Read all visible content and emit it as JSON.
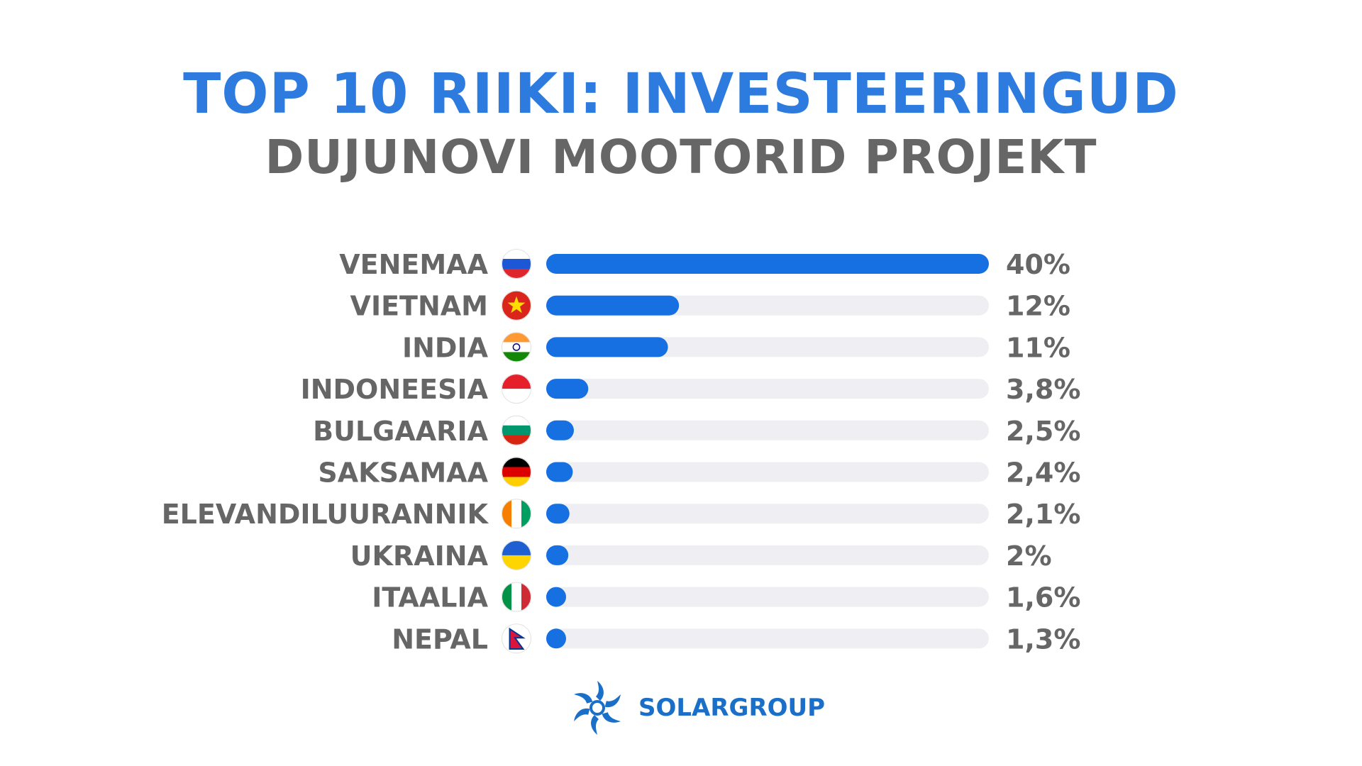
{
  "header": {
    "title": "TOP 10 RIIKI: INVESTEERINGUD",
    "subtitle": "DUJUNOVI MOOTORID PROJEKT"
  },
  "colors": {
    "title": "#2e7be0",
    "subtitle": "#666666",
    "label": "#666666",
    "bar": "#1670e1",
    "track": "#efeff3",
    "logo": "#1a6fc8"
  },
  "logo": {
    "text": "SOLARGROUP",
    "icon": "sun-swirl-icon"
  },
  "chart_data": {
    "type": "bar",
    "orientation": "horizontal",
    "categories": [
      "VENEMAA",
      "VIETNAM",
      "INDIA",
      "INDONEESIA",
      "BULGAARIA",
      "SAKSAMAA",
      "ELEVANDILUURANNIK",
      "UKRAINA",
      "ITAALIA",
      "NEPAL"
    ],
    "values": [
      40,
      12,
      11,
      3.8,
      2.5,
      2.4,
      2.1,
      2,
      1.6,
      1.3
    ],
    "value_labels": [
      "40%",
      "12%",
      "11%",
      "3,8%",
      "2,5%",
      "2,4%",
      "2,1%",
      "2%",
      "1,6%",
      "1,3%"
    ],
    "flags": [
      "russia-flag-icon",
      "vietnam-flag-icon",
      "india-flag-icon",
      "indonesia-flag-icon",
      "bulgaria-flag-icon",
      "germany-flag-icon",
      "ivory-coast-flag-icon",
      "ukraine-flag-icon",
      "italy-flag-icon",
      "nepal-flag-icon"
    ],
    "xlim": [
      0,
      40
    ],
    "grid": false,
    "legend": "none"
  }
}
